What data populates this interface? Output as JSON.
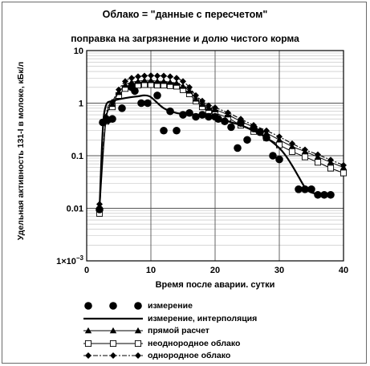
{
  "chart_data": {
    "type": "line",
    "title": "Облако = \"данные с пересчетом\"",
    "subtitle": "поправка на загрязнение и долю чистого корма",
    "xlabel": "Время после аварии. сутки",
    "ylabel": "Удельная активность 131-I в молоке, кБк/л",
    "xlim": [
      0,
      40
    ],
    "ylim": [
      0.001,
      10
    ],
    "yscale": "log",
    "grid": true,
    "legend_position": "bottom",
    "x_ticks": [
      {
        "value": 0,
        "label": "0"
      },
      {
        "value": 10,
        "label": "10"
      },
      {
        "value": 20,
        "label": "20"
      },
      {
        "value": 30,
        "label": "30"
      },
      {
        "value": 40,
        "label": "40"
      }
    ],
    "y_ticks": [
      {
        "value": 10,
        "label": "10"
      },
      {
        "value": 1,
        "label": "1"
      },
      {
        "value": 0.1,
        "label": "0.1"
      },
      {
        "value": 0.01,
        "label": "0.01"
      }
    ],
    "y_tick_min": {
      "value": 0.001,
      "base": "1×10",
      "exp": "−3"
    },
    "series": [
      {
        "name": "измерение",
        "style": "markers",
        "marker": "circle",
        "x": [
          2,
          2.5,
          3.3,
          4,
          5.5,
          7,
          7.5,
          8.5,
          9.5,
          11,
          12,
          13,
          14,
          15,
          16,
          17,
          18,
          19,
          20,
          20.5,
          21.5,
          22.5,
          23.5,
          24,
          25,
          26,
          27,
          28,
          29,
          30,
          33,
          34,
          35,
          36,
          37,
          38
        ],
        "y": [
          0.0095,
          0.43,
          0.48,
          0.5,
          0.8,
          2.0,
          1.7,
          1.0,
          1.0,
          1.4,
          0.3,
          0.7,
          0.3,
          0.6,
          0.65,
          0.55,
          0.6,
          0.55,
          0.55,
          0.5,
          0.45,
          0.35,
          0.14,
          0.42,
          0.2,
          0.33,
          0.28,
          0.22,
          0.1,
          0.085,
          0.023,
          0.023,
          0.023,
          0.018,
          0.018,
          0.018
        ]
      },
      {
        "name": "измерение, интерполяция",
        "style": "line",
        "x": [
          2,
          2.5,
          3,
          4,
          6,
          8,
          9,
          10,
          12,
          14,
          16,
          18,
          20,
          22,
          24,
          26,
          28,
          30,
          31,
          32,
          33,
          34,
          35,
          37,
          38
        ],
        "y": [
          0.01,
          0.3,
          0.9,
          1.1,
          1.25,
          1.35,
          1.4,
          1.3,
          0.8,
          0.65,
          0.62,
          0.58,
          0.53,
          0.45,
          0.38,
          0.3,
          0.22,
          0.14,
          0.1,
          0.065,
          0.04,
          0.025,
          0.02,
          0.018,
          0.018
        ]
      },
      {
        "name": "прямой расчет",
        "style": "line-markers",
        "marker": "triangle",
        "x": [
          2,
          3,
          4,
          5,
          6,
          7,
          8,
          9,
          10,
          11,
          12,
          13,
          14,
          15,
          16,
          17,
          18,
          19,
          20,
          22,
          24,
          26,
          28,
          30,
          32,
          34,
          36,
          38,
          40
        ],
        "y": [
          0.011,
          0.5,
          0.95,
          1.6,
          2.2,
          2.5,
          2.6,
          2.7,
          2.7,
          2.6,
          2.6,
          2.5,
          2.4,
          2.1,
          1.7,
          1.2,
          0.95,
          0.8,
          0.75,
          0.6,
          0.45,
          0.35,
          0.27,
          0.2,
          0.15,
          0.12,
          0.095,
          0.075,
          0.06
        ]
      },
      {
        "name": "неоднородное облако",
        "style": "line-markers",
        "marker": "square",
        "x": [
          2,
          3,
          4,
          5,
          6,
          7,
          8,
          9,
          10,
          11,
          12,
          13,
          14,
          15,
          16,
          17,
          18,
          19,
          20,
          22,
          24,
          26,
          28,
          30,
          32,
          34,
          36,
          38,
          40
        ],
        "y": [
          0.008,
          0.45,
          0.85,
          1.4,
          1.9,
          2.1,
          2.2,
          2.25,
          2.25,
          2.2,
          2.2,
          2.15,
          2.1,
          1.8,
          1.5,
          1.1,
          0.85,
          0.72,
          0.65,
          0.52,
          0.38,
          0.29,
          0.22,
          0.16,
          0.12,
          0.095,
          0.075,
          0.058,
          0.047
        ]
      },
      {
        "name": "однородное облако",
        "style": "dashdot-markers",
        "marker": "diamond",
        "x": [
          2,
          3,
          4,
          5,
          6,
          7,
          8,
          9,
          10,
          11,
          12,
          13,
          14,
          15,
          16,
          17,
          18,
          19,
          20,
          22,
          24,
          26,
          28,
          30,
          32,
          34,
          36,
          38,
          40
        ],
        "y": [
          0.012,
          0.55,
          1.05,
          1.8,
          2.6,
          3.0,
          3.2,
          3.3,
          3.35,
          3.3,
          3.3,
          3.2,
          3.0,
          2.6,
          2.0,
          1.4,
          1.1,
          0.9,
          0.82,
          0.66,
          0.5,
          0.38,
          0.3,
          0.23,
          0.17,
          0.13,
          0.105,
          0.083,
          0.066
        ]
      }
    ]
  }
}
